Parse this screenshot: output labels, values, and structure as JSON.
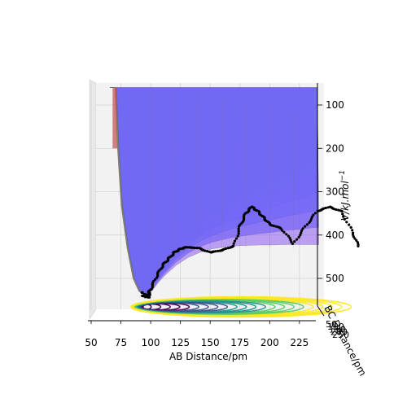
{
  "chart_data": {
    "type": "surface-3d",
    "xlabel": "AB Distance/pm",
    "ylabel": "BC Distance/pm",
    "zlabel": "V/kJ.mol$^{-1}$",
    "zlabel_display": "V/kJ.mol",
    "zlabel_sup": "−1",
    "x_ticks": [
      "50",
      "75",
      "100",
      "125",
      "150",
      "175",
      "200",
      "225"
    ],
    "z_ticks": [
      "100",
      "200",
      "300",
      "400",
      "500"
    ],
    "y_ticks_cluster": [
      "50",
      "100",
      "150",
      "200",
      "250"
    ],
    "xlim": [
      50,
      240
    ],
    "zlim": [
      50,
      550
    ],
    "grid": true,
    "surface_colors": [
      "#f08080",
      "#f5c07a",
      "#f2e27d",
      "#e6f27a",
      "#b4f0a0",
      "#8fd2f0",
      "#5a8cff",
      "#3050ff",
      "#8c5af0"
    ],
    "trajectory_color": "#000000",
    "contour_colors": [
      "#440154",
      "#3b528b",
      "#21918c",
      "#5ec962",
      "#fde725"
    ],
    "surface_profile": {
      "ab": [
        70,
        72,
        75,
        80,
        85,
        90,
        95,
        100,
        105,
        110,
        120,
        130,
        140,
        150,
        160,
        170,
        180,
        190,
        200,
        210,
        220,
        230,
        240
      ],
      "V": [
        60,
        200,
        330,
        430,
        500,
        530,
        540,
        528,
        510,
        495,
        470,
        452,
        440,
        432,
        428,
        425,
        424,
        423,
        423,
        422,
        422,
        422,
        422
      ]
    },
    "trajectory": {
      "ab": [
        97,
        100,
        105,
        110,
        115,
        120,
        125,
        130,
        140,
        150,
        160,
        170,
        175,
        180,
        185,
        190,
        195,
        200,
        210,
        220,
        230,
        240,
        250,
        260,
        270,
        275
      ],
      "V": [
        540,
        525,
        495,
        470,
        455,
        440,
        432,
        428,
        430,
        440,
        435,
        425,
        380,
        350,
        335,
        345,
        360,
        375,
        385,
        420,
        380,
        345,
        335,
        345,
        395,
        430
      ]
    }
  }
}
